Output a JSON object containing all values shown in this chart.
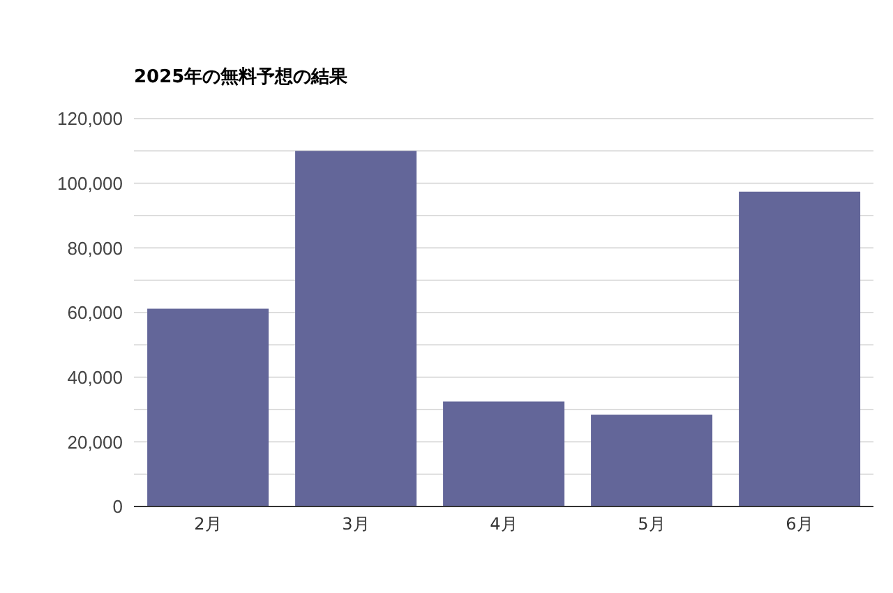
{
  "chart_data": {
    "type": "bar",
    "title": "2025年の無料予想の結果",
    "categories": [
      "2月",
      "3月",
      "4月",
      "5月",
      "6月"
    ],
    "values": [
      61200,
      110000,
      32500,
      28400,
      97400
    ],
    "color": "#636699",
    "ylim": [
      0,
      120000
    ],
    "yticks": [
      {
        "value": 0,
        "label": "0"
      },
      {
        "value": 10000,
        "label": null
      },
      {
        "value": 20000,
        "label": "20,000"
      },
      {
        "value": 30000,
        "label": null
      },
      {
        "value": 40000,
        "label": "40,000"
      },
      {
        "value": 50000,
        "label": null
      },
      {
        "value": 60000,
        "label": "60,000"
      },
      {
        "value": 70000,
        "label": null
      },
      {
        "value": 80000,
        "label": "80,000"
      },
      {
        "value": 90000,
        "label": null
      },
      {
        "value": 100000,
        "label": "100,000"
      },
      {
        "value": 110000,
        "label": null
      },
      {
        "value": 120000,
        "label": "120,000"
      }
    ],
    "grid": "y"
  }
}
